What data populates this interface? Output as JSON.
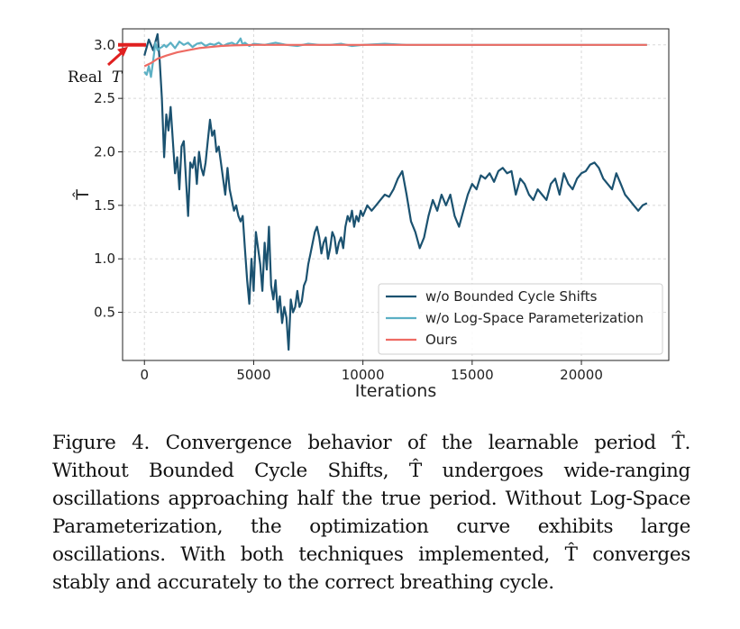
{
  "chart_data": {
    "type": "line",
    "xlabel": "Iterations",
    "ylabel": "T̂",
    "xlim": [
      -1000,
      24000
    ],
    "ylim": [
      0.05,
      3.15
    ],
    "xticks": [
      0,
      5000,
      10000,
      15000,
      20000
    ],
    "xtick_labels": [
      "0",
      "5000",
      "10000",
      "15000",
      "20000"
    ],
    "yticks": [
      0.5,
      1.0,
      1.5,
      2.0,
      2.5,
      3.0
    ],
    "ytick_labels": [
      "0.5",
      "1.0",
      "1.5",
      "2.0",
      "2.5",
      "3.0"
    ],
    "grid": true,
    "legend_position": "lower-right",
    "annotation": {
      "text": "Real",
      "symbol": "T",
      "y": 3.0
    },
    "series": [
      {
        "name": "w/o Bounded Cycle Shifts",
        "color": "#1b5270",
        "x": [
          0,
          200,
          400,
          600,
          700,
          800,
          900,
          1000,
          1100,
          1200,
          1300,
          1400,
          1500,
          1600,
          1700,
          1800,
          1900,
          2000,
          2100,
          2200,
          2300,
          2400,
          2500,
          2600,
          2700,
          2800,
          2900,
          3000,
          3100,
          3200,
          3300,
          3400,
          3500,
          3600,
          3700,
          3800,
          3900,
          4000,
          4100,
          4200,
          4300,
          4400,
          4500,
          4600,
          4700,
          4800,
          4900,
          5000,
          5100,
          5200,
          5300,
          5400,
          5500,
          5600,
          5700,
          5800,
          5900,
          6000,
          6100,
          6200,
          6300,
          6400,
          6500,
          6600,
          6700,
          6800,
          6900,
          7000,
          7100,
          7200,
          7300,
          7400,
          7500,
          7600,
          7700,
          7800,
          7900,
          8000,
          8100,
          8200,
          8300,
          8400,
          8500,
          8600,
          8700,
          8800,
          8900,
          9000,
          9100,
          9200,
          9300,
          9400,
          9500,
          9600,
          9700,
          9800,
          9900,
          10000,
          10200,
          10400,
          10600,
          10800,
          11000,
          11200,
          11400,
          11600,
          11800,
          12000,
          12200,
          12400,
          12600,
          12800,
          13000,
          13200,
          13400,
          13600,
          13800,
          14000,
          14200,
          14400,
          14600,
          14800,
          15000,
          15200,
          15400,
          15600,
          15800,
          16000,
          16200,
          16400,
          16600,
          16800,
          17000,
          17200,
          17400,
          17600,
          17800,
          18000,
          18200,
          18400,
          18600,
          18800,
          19000,
          19200,
          19400,
          19600,
          19800,
          20000,
          20200,
          20400,
          20600,
          20800,
          21000,
          21200,
          21400,
          21600,
          21800,
          22000,
          22200,
          22400,
          22600,
          22800,
          23000
        ],
        "values": [
          2.9,
          3.05,
          2.95,
          3.1,
          2.85,
          2.5,
          1.95,
          2.35,
          2.2,
          2.42,
          2.1,
          1.8,
          1.95,
          1.65,
          2.05,
          2.1,
          1.75,
          1.4,
          1.9,
          1.85,
          1.95,
          1.7,
          2.0,
          1.85,
          1.78,
          1.9,
          2.1,
          2.3,
          2.15,
          2.2,
          2.0,
          2.05,
          1.9,
          1.75,
          1.6,
          1.85,
          1.65,
          1.55,
          1.45,
          1.5,
          1.4,
          1.35,
          1.4,
          1.1,
          0.8,
          0.58,
          1.0,
          0.7,
          1.25,
          1.1,
          0.95,
          0.7,
          1.15,
          0.9,
          1.3,
          0.75,
          0.62,
          0.8,
          0.5,
          0.65,
          0.4,
          0.55,
          0.45,
          0.15,
          0.62,
          0.5,
          0.55,
          0.7,
          0.55,
          0.6,
          0.75,
          0.8,
          0.95,
          1.05,
          1.15,
          1.25,
          1.3,
          1.2,
          1.05,
          1.15,
          1.2,
          1.0,
          1.1,
          1.25,
          1.2,
          1.05,
          1.15,
          1.2,
          1.1,
          1.3,
          1.4,
          1.35,
          1.45,
          1.3,
          1.4,
          1.35,
          1.45,
          1.4,
          1.5,
          1.45,
          1.5,
          1.55,
          1.6,
          1.58,
          1.65,
          1.75,
          1.82,
          1.6,
          1.35,
          1.25,
          1.1,
          1.2,
          1.4,
          1.55,
          1.45,
          1.6,
          1.5,
          1.6,
          1.4,
          1.3,
          1.45,
          1.6,
          1.7,
          1.65,
          1.78,
          1.75,
          1.8,
          1.72,
          1.82,
          1.85,
          1.8,
          1.82,
          1.6,
          1.75,
          1.7,
          1.6,
          1.55,
          1.65,
          1.6,
          1.55,
          1.7,
          1.75,
          1.6,
          1.8,
          1.7,
          1.65,
          1.75,
          1.8,
          1.82,
          1.88,
          1.9,
          1.85,
          1.75,
          1.7,
          1.65,
          1.8,
          1.7,
          1.6,
          1.55,
          1.5,
          1.45,
          1.5,
          1.52
        ]
      },
      {
        "name": "w/o Log-Space Parameterization",
        "color": "#5bb0c4",
        "x": [
          0,
          100,
          200,
          300,
          400,
          500,
          600,
          700,
          800,
          900,
          1000,
          1200,
          1400,
          1600,
          1800,
          2000,
          2200,
          2400,
          2600,
          2800,
          3000,
          3200,
          3400,
          3600,
          3800,
          4000,
          4200,
          4300,
          4400,
          4500,
          4600,
          4800,
          5000,
          5500,
          6000,
          6500,
          7000,
          7500,
          8000,
          8500,
          9000,
          9500,
          10000,
          11000,
          12000,
          13000,
          14000,
          15000,
          16000,
          17000,
          18000,
          19000,
          20000,
          21000,
          22000,
          23000
        ],
        "values": [
          2.75,
          2.72,
          2.8,
          2.7,
          2.85,
          3.02,
          2.95,
          2.97,
          2.98,
          3.0,
          2.98,
          3.02,
          2.97,
          3.03,
          3.0,
          3.02,
          2.98,
          3.01,
          3.02,
          2.99,
          3.01,
          3.0,
          3.02,
          2.99,
          3.01,
          3.02,
          3.0,
          3.03,
          3.06,
          3.0,
          3.02,
          2.99,
          3.01,
          3.0,
          3.02,
          3.0,
          2.99,
          3.01,
          3.0,
          3.0,
          3.01,
          2.99,
          3.0,
          3.01,
          3.0,
          3.0,
          3.0,
          3.0,
          3.0,
          3.0,
          3.0,
          3.0,
          3.0,
          3.0,
          3.0,
          3.0
        ]
      },
      {
        "name": "Ours",
        "color": "#ee6b63",
        "x": [
          0,
          300,
          600,
          1000,
          1500,
          2000,
          2500,
          3000,
          3500,
          4000,
          5000,
          6000,
          7000,
          8000,
          9000,
          10000,
          12000,
          14000,
          16000,
          18000,
          20000,
          22000,
          23000
        ],
        "values": [
          2.8,
          2.83,
          2.87,
          2.9,
          2.93,
          2.95,
          2.97,
          2.98,
          2.99,
          2.995,
          3.0,
          3.0,
          3.0,
          3.0,
          3.0,
          3.0,
          3.0,
          3.0,
          3.0,
          3.0,
          3.0,
          3.0,
          3.0
        ]
      }
    ]
  },
  "caption": {
    "text": "Figure 4. Convergence behavior of the learnable period T̂. Without Bounded Cycle Shifts, T̂ undergoes wide-ranging oscillations approaching half the true period. Without Log-Space Parameterization, the optimization curve exhibits large oscillations. With both techniques implemented, T̂ converges stably and accurately to the correct breathing cycle."
  },
  "colors": {
    "grid": "#d8d8d8",
    "annotation_arrow": "#e02020"
  }
}
